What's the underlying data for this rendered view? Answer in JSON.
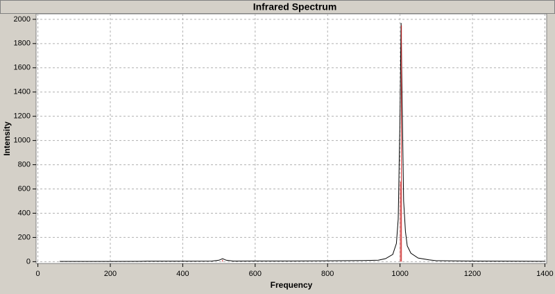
{
  "chart_data": {
    "type": "line",
    "title": "Infrared Spectrum",
    "x_label": "Frequency",
    "y_label": "Intensity",
    "xlim": [
      -5,
      1405
    ],
    "ylim": [
      -15,
      2045
    ],
    "xticks": [
      0,
      200,
      400,
      600,
      800,
      1000,
      1200,
      1400
    ],
    "yticks": [
      0,
      200,
      400,
      600,
      800,
      1000,
      1200,
      1400,
      1600,
      1800,
      2000
    ],
    "grid": true,
    "series": [
      {
        "color": "#000000",
        "style": "line",
        "x": [
          60,
          100,
          200,
          280,
          300,
          400,
          480,
          500,
          510,
          520,
          540,
          600,
          700,
          800,
          900,
          940,
          960,
          980,
          990,
          995,
          1000,
          1003,
          1006,
          1010,
          1015,
          1020,
          1030,
          1050,
          1080,
          1100,
          1200,
          1300,
          1400
        ],
        "values": [
          2,
          2,
          2,
          3,
          4,
          4,
          5,
          12,
          25,
          12,
          5,
          6,
          6,
          7,
          9,
          12,
          25,
          60,
          150,
          350,
          1200,
          1970,
          1300,
          500,
          250,
          130,
          70,
          30,
          15,
          8,
          5,
          4,
          3
        ]
      },
      {
        "color": "#cc2222",
        "style": "sticks",
        "x": [
          510,
          1001,
          1004
        ],
        "values": [
          15,
          660,
          1950
        ]
      }
    ]
  }
}
